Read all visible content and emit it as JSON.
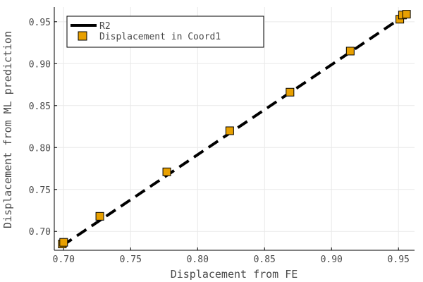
{
  "chart_data": {
    "type": "scatter",
    "xlabel": "Displacement from FE",
    "ylabel": "Displacement from ML prediction",
    "xlim": [
      0.693,
      0.962
    ],
    "ylim": [
      0.6775,
      0.9675
    ],
    "xticks": [
      0.7,
      0.75,
      0.8,
      0.85,
      0.9,
      0.95
    ],
    "xtick_labels": [
      "0.70",
      "0.75",
      "0.80",
      "0.85",
      "0.90",
      "0.95"
    ],
    "yticks": [
      0.7,
      0.75,
      0.8,
      0.85,
      0.9,
      0.95
    ],
    "ytick_labels": [
      "0.70",
      "0.75",
      "0.80",
      "0.85",
      "0.90",
      "0.95"
    ],
    "grid": true,
    "legend_position": "top-left",
    "series": [
      {
        "name": "R2",
        "kind": "line",
        "style": "dashed",
        "color": "#000000",
        "x": [
          0.699,
          0.958
        ],
        "y": [
          0.683,
          0.961
        ]
      },
      {
        "name": "Displacement in Coord1",
        "kind": "scatter",
        "marker": "square",
        "color": "#E8A000",
        "x": [
          0.699,
          0.7,
          0.727,
          0.777,
          0.824,
          0.869,
          0.914,
          0.951,
          0.953,
          0.956
        ],
        "y": [
          0.685,
          0.687,
          0.718,
          0.771,
          0.82,
          0.866,
          0.915,
          0.953,
          0.958,
          0.959
        ]
      }
    ]
  }
}
